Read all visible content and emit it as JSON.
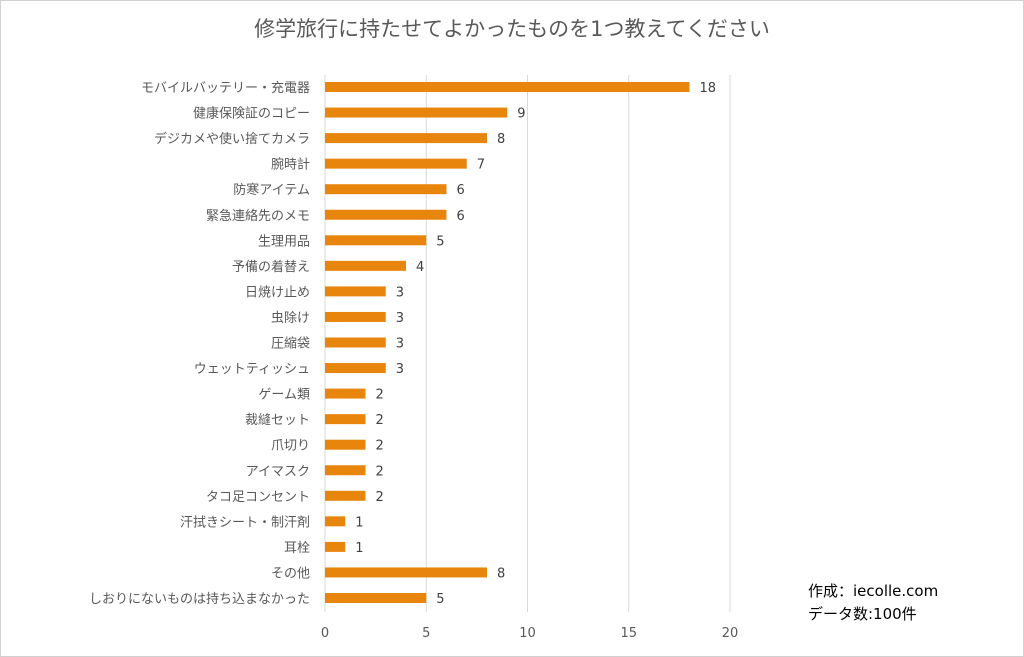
{
  "chart_data": {
    "type": "bar",
    "orientation": "horizontal",
    "title": "修学旅行に持たせてよかったものを1つ教えてください",
    "categories": [
      "モバイルバッテリー・充電器",
      "健康保険証のコピー",
      "デジカメや使い捨てカメラ",
      "腕時計",
      "防寒アイテム",
      "緊急連絡先のメモ",
      "生理用品",
      "予備の着替え",
      "日焼け止め",
      "虫除け",
      "圧縮袋",
      "ウェットティッシュ",
      "ゲーム類",
      "裁縫セット",
      "爪切り",
      "アイマスク",
      "タコ足コンセント",
      "汗拭きシート・制汗剤",
      "耳栓",
      "その他",
      "しおりにないものは持ち込まなかった"
    ],
    "values": [
      18,
      9,
      8,
      7,
      6,
      6,
      5,
      4,
      3,
      3,
      3,
      3,
      2,
      2,
      2,
      2,
      2,
      1,
      1,
      8,
      5
    ],
    "xlim": [
      0,
      20
    ],
    "xticks": [
      0,
      5,
      10,
      15,
      20
    ],
    "grid": "vertical",
    "data_labels": true,
    "bar_color": "#E8850C"
  },
  "annotations": {
    "author": "作成：iecolle.com",
    "count": "データ数:100件"
  }
}
